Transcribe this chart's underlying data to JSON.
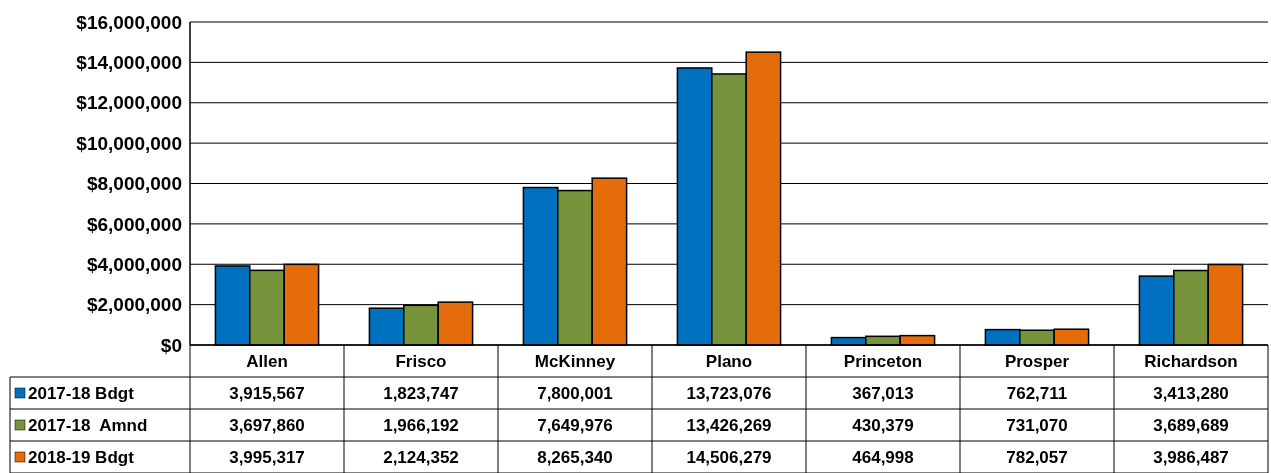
{
  "chart_data": {
    "type": "bar",
    "categories": [
      "Allen",
      "Frisco",
      "McKinney",
      "Plano",
      "Princeton",
      "Prosper",
      "Richardson"
    ],
    "series": [
      {
        "name": "2017-18 Bdgt",
        "color": "#0070c0",
        "values": [
          3915567,
          1823747,
          7800001,
          13723076,
          367013,
          762711,
          3413280
        ],
        "value_labels": [
          "3,915,567",
          "1,823,747",
          "7,800,001",
          "13,723,076",
          "367,013",
          "762,711",
          "3,413,280"
        ]
      },
      {
        "name": "2017-18  Amnd",
        "color": "#77933c",
        "values": [
          3697860,
          1966192,
          7649976,
          13426269,
          430379,
          731070,
          3689689
        ],
        "value_labels": [
          "3,697,860",
          "1,966,192",
          "7,649,976",
          "13,426,269",
          "430,379",
          "731,070",
          "3,689,689"
        ]
      },
      {
        "name": "2018-19 Bdgt",
        "color": "#e46c0a",
        "values": [
          3995317,
          2124352,
          8265340,
          14506279,
          464998,
          782057,
          3986487
        ],
        "value_labels": [
          "3,995,317",
          "2,124,352",
          "8,265,340",
          "14,506,279",
          "464,998",
          "782,057",
          "3,986,487"
        ]
      }
    ],
    "ylim": [
      0,
      16000000
    ],
    "yticks": [
      {
        "value": 0,
        "label": "$0"
      },
      {
        "value": 2000000,
        "label": "$2,000,000"
      },
      {
        "value": 4000000,
        "label": "$4,000,000"
      },
      {
        "value": 6000000,
        "label": "$6,000,000"
      },
      {
        "value": 8000000,
        "label": "$8,000,000"
      },
      {
        "value": 10000000,
        "label": "$10,000,000"
      },
      {
        "value": 12000000,
        "label": "$12,000,000"
      },
      {
        "value": 14000000,
        "label": "$14,000,000"
      },
      {
        "value": 16000000,
        "label": "$16,000,000"
      }
    ],
    "grid": "y",
    "legend": "bottom"
  }
}
